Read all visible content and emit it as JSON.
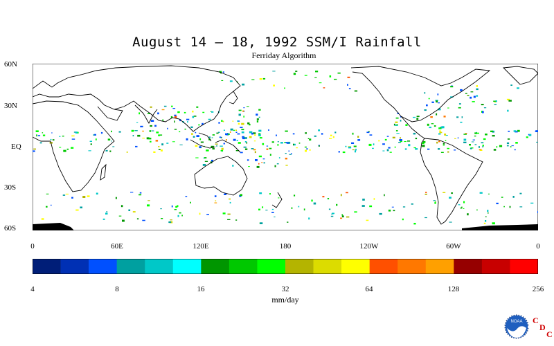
{
  "header": {
    "title": "August 14 – 18, 1992 SSM/I Rainfall",
    "subtitle": "Ferriday Algorithm"
  },
  "map": {
    "lat_labels": [
      "60N",
      "30N",
      "EQ",
      "30S",
      "60S"
    ],
    "lon_labels": [
      "0",
      "60E",
      "120E",
      "180",
      "120W",
      "60W",
      "0"
    ]
  },
  "colorbar": {
    "tick_labels": [
      "4",
      "8",
      "16",
      "32",
      "64",
      "128",
      "256"
    ],
    "units": "mm/day",
    "colors": [
      "#001e78",
      "#0030b4",
      "#0050ff",
      "#00a0a0",
      "#00c8c8",
      "#00ffff",
      "#009600",
      "#00c800",
      "#00ff00",
      "#b4b400",
      "#dcdc00",
      "#ffff00",
      "#ff5000",
      "#ff7800",
      "#ffa000",
      "#960000",
      "#c80000",
      "#ff0000"
    ]
  },
  "logo": {
    "agency": "NOAA",
    "letters": [
      "C",
      "D",
      "C"
    ]
  }
}
